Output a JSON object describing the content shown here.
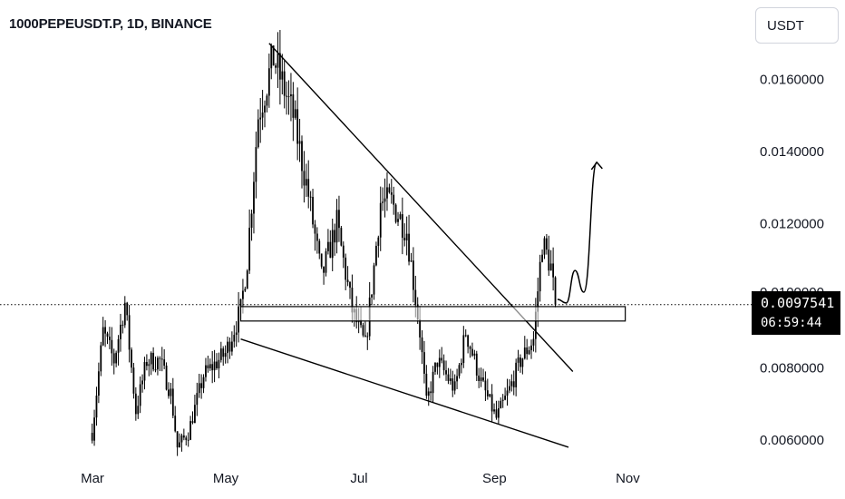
{
  "header": {
    "title": "1000PEPEUSDT.P, 1D, BINANCE"
  },
  "currency_button": {
    "label": "USDT"
  },
  "last_price": {
    "value": "0.0097541",
    "countdown": "06:59:44"
  },
  "colors": {
    "candle": "#000000",
    "line": "#000000",
    "background": "#ffffff",
    "axis_text": "#131722"
  },
  "chart_data": {
    "type": "candlestick",
    "title": "1000PEPEUSDT.P, 1D, BINANCE",
    "xlabel": "",
    "ylabel": "",
    "x_ticks": [
      "Mar",
      "May",
      "Jul",
      "Sep",
      "Nov"
    ],
    "y_ticks": [
      "0.0060000",
      "0.0080000",
      "0.0120000",
      "0.0140000",
      "0.0160000"
    ],
    "y_tick_hidden": "0.0100000",
    "ylim": [
      0.0055,
      0.0172
    ],
    "grid": false,
    "last_price": 0.0097541,
    "price_waypoints": [
      {
        "date": "2024-03-05",
        "price": 0.0062
      },
      {
        "date": "2024-03-10",
        "price": 0.009
      },
      {
        "date": "2024-03-15",
        "price": 0.0082
      },
      {
        "date": "2024-03-20",
        "price": 0.0098
      },
      {
        "date": "2024-03-25",
        "price": 0.0068
      },
      {
        "date": "2024-03-30",
        "price": 0.0082
      },
      {
        "date": "2024-04-05",
        "price": 0.0082
      },
      {
        "date": "2024-04-10",
        "price": 0.0073
      },
      {
        "date": "2024-04-13",
        "price": 0.0058
      },
      {
        "date": "2024-04-18",
        "price": 0.0062
      },
      {
        "date": "2024-04-25",
        "price": 0.0078
      },
      {
        "date": "2024-05-05",
        "price": 0.0084
      },
      {
        "date": "2024-05-12",
        "price": 0.0096
      },
      {
        "date": "2024-05-15",
        "price": 0.011
      },
      {
        "date": "2024-05-20",
        "price": 0.015
      },
      {
        "date": "2024-05-27",
        "price": 0.0166
      },
      {
        "date": "2024-06-05",
        "price": 0.015
      },
      {
        "date": "2024-06-12",
        "price": 0.0128
      },
      {
        "date": "2024-06-18",
        "price": 0.0105
      },
      {
        "date": "2024-06-25",
        "price": 0.012
      },
      {
        "date": "2024-07-02",
        "price": 0.0096
      },
      {
        "date": "2024-07-08",
        "price": 0.0086
      },
      {
        "date": "2024-07-12",
        "price": 0.0108
      },
      {
        "date": "2024-07-15",
        "price": 0.0126
      },
      {
        "date": "2024-07-20",
        "price": 0.0126
      },
      {
        "date": "2024-07-27",
        "price": 0.0118
      },
      {
        "date": "2024-08-02",
        "price": 0.009
      },
      {
        "date": "2024-08-05",
        "price": 0.007
      },
      {
        "date": "2024-08-10",
        "price": 0.0082
      },
      {
        "date": "2024-08-18",
        "price": 0.0074
      },
      {
        "date": "2024-08-23",
        "price": 0.009
      },
      {
        "date": "2024-08-30",
        "price": 0.0076
      },
      {
        "date": "2024-09-06",
        "price": 0.0066
      },
      {
        "date": "2024-09-12",
        "price": 0.0074
      },
      {
        "date": "2024-09-17",
        "price": 0.0082
      },
      {
        "date": "2024-09-23",
        "price": 0.0088
      },
      {
        "date": "2024-09-27",
        "price": 0.0115
      },
      {
        "date": "2024-10-01",
        "price": 0.0108
      },
      {
        "date": "2024-10-03",
        "price": 0.0097541
      }
    ],
    "annotations": {
      "falling_wedge_upper": [
        {
          "date": "2024-05-25",
          "price": 0.017
        },
        {
          "date": "2024-10-11",
          "price": 0.0079
        }
      ],
      "falling_wedge_lower": [
        {
          "date": "2024-05-12",
          "price": 0.0088
        },
        {
          "date": "2024-10-09",
          "price": 0.0058
        }
      ],
      "support_zone": {
        "from_date": "2024-05-12",
        "to_date": "2024-11-04",
        "price_low": 0.0093,
        "price_high": 0.0097
      },
      "projection_arrow": [
        {
          "date": "2024-10-04",
          "price": 0.0099
        },
        {
          "date": "2024-10-08",
          "price": 0.0098
        },
        {
          "date": "2024-10-12",
          "price": 0.0107
        },
        {
          "date": "2024-10-16",
          "price": 0.0101
        },
        {
          "date": "2024-10-22",
          "price": 0.0137
        }
      ]
    }
  }
}
